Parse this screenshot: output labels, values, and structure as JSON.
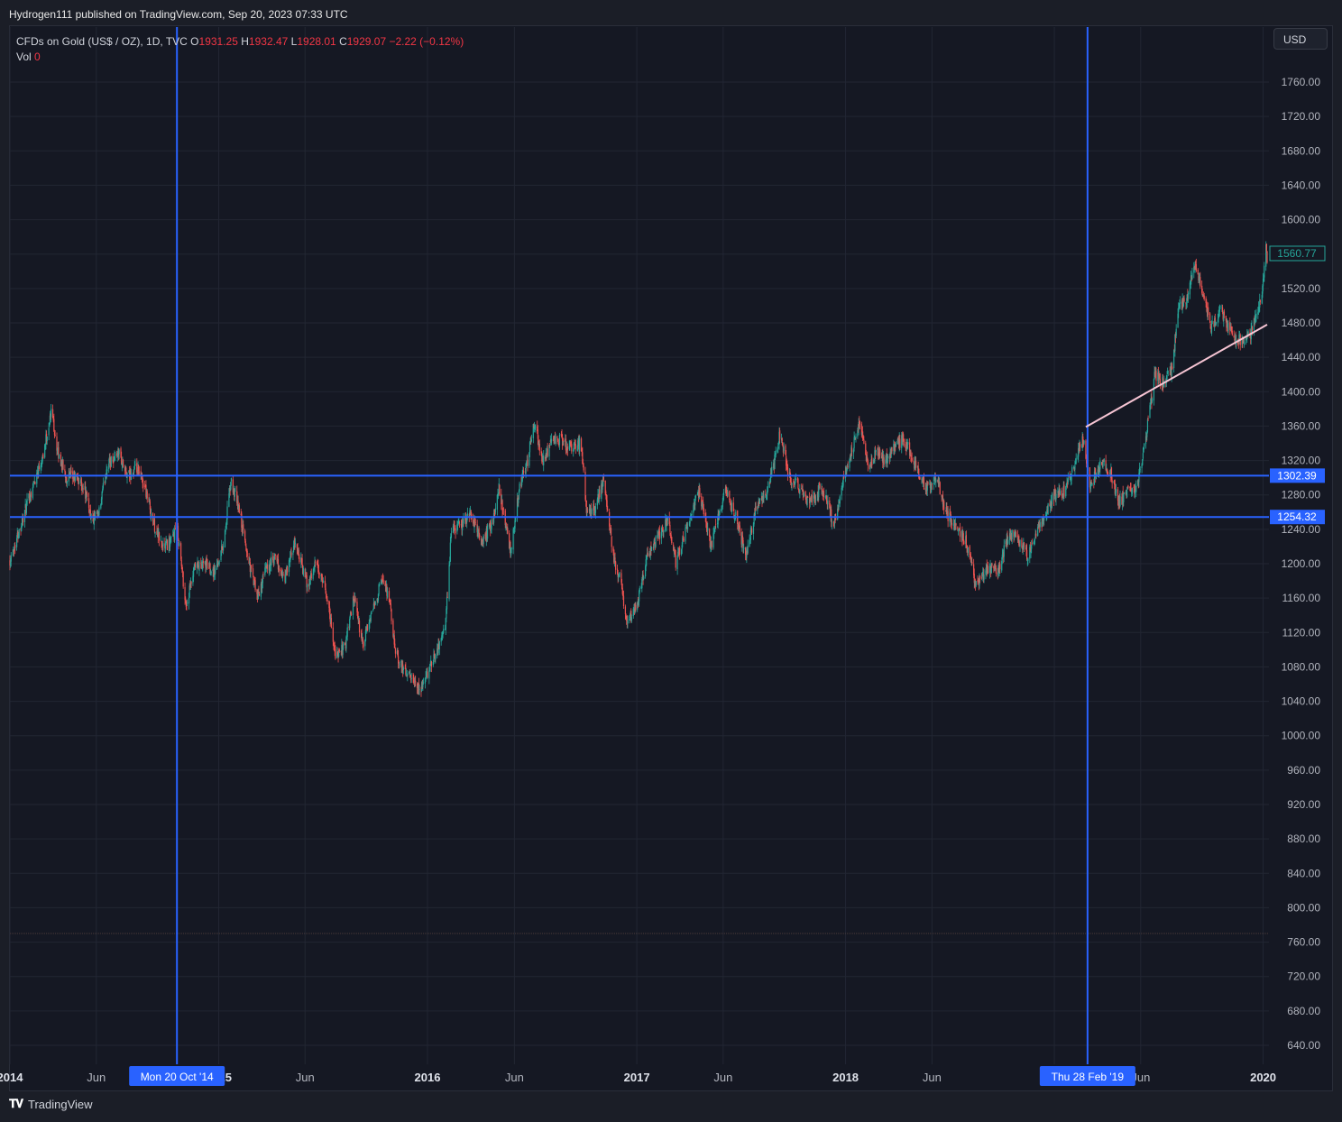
{
  "header": {
    "text": "Hydrogen111 published on TradingView.com, Sep 20, 2023 07:33 UTC"
  },
  "legend": {
    "symbol": "CFDs on Gold (US$ / OZ), 1D, TVC",
    "o_label": "O",
    "o_value": "1931.25",
    "h_label": "H",
    "h_value": "1932.47",
    "l_label": "L",
    "l_value": "1928.01",
    "c_label": "C",
    "c_value": "1929.07",
    "change": "−2.22 (−0.12%)",
    "vol_label": "Vol",
    "vol_value": "0"
  },
  "currency_button": "USD",
  "footer": {
    "logo_icon": "tradingview-logo-icon",
    "brand": "TradingView"
  },
  "colors": {
    "background": "#151823",
    "grid": "#222633",
    "up": "#26a69a",
    "down": "#ef5350",
    "marker": "#2962ff",
    "trendline": "#f7c5d4",
    "text": "#b2b5be"
  },
  "chart_data": {
    "type": "candlestick",
    "title": "CFDs on Gold (US$ / OZ), 1D, TVC",
    "ylim": [
      620,
      1800
    ],
    "y_ticks": [
      640,
      680,
      720,
      760,
      800,
      840,
      880,
      920,
      960,
      1000,
      1040,
      1080,
      1120,
      1160,
      1200,
      1240,
      1280,
      1320,
      1360,
      1400,
      1440,
      1480,
      1520,
      1560,
      1600,
      1640,
      1680,
      1720,
      1760
    ],
    "x_range": [
      "2014-01-01",
      "2020-01-08"
    ],
    "x_ticks": [
      {
        "date": "2014-01-01",
        "label": "2014",
        "bold": true
      },
      {
        "date": "2014-06-01",
        "label": "Jun",
        "bold": false
      },
      {
        "date": "2015-01-01",
        "label": "2015",
        "bold": true
      },
      {
        "date": "2015-06-01",
        "label": "Jun",
        "bold": false
      },
      {
        "date": "2016-01-01",
        "label": "2016",
        "bold": true
      },
      {
        "date": "2016-06-01",
        "label": "Jun",
        "bold": false
      },
      {
        "date": "2017-01-01",
        "label": "2017",
        "bold": true
      },
      {
        "date": "2017-06-01",
        "label": "Jun",
        "bold": false
      },
      {
        "date": "2018-01-01",
        "label": "2018",
        "bold": true
      },
      {
        "date": "2018-06-01",
        "label": "Jun",
        "bold": false
      },
      {
        "date": "2019-01-01",
        "label": "2019",
        "bold": true
      },
      {
        "date": "2019-06-01",
        "label": "Jun",
        "bold": false
      },
      {
        "date": "2020-01-01",
        "label": "2020",
        "bold": true
      }
    ],
    "price_path": [
      [
        "2014-01-01",
        1205
      ],
      [
        "2014-01-20",
        1245
      ],
      [
        "2014-02-10",
        1290
      ],
      [
        "2014-03-01",
        1330
      ],
      [
        "2014-03-15",
        1380
      ],
      [
        "2014-03-25",
        1330
      ],
      [
        "2014-04-10",
        1300
      ],
      [
        "2014-04-25",
        1300
      ],
      [
        "2014-05-10",
        1290
      ],
      [
        "2014-05-25",
        1250
      ],
      [
        "2014-06-05",
        1255
      ],
      [
        "2014-06-20",
        1315
      ],
      [
        "2014-07-10",
        1330
      ],
      [
        "2014-07-25",
        1300
      ],
      [
        "2014-08-10",
        1310
      ],
      [
        "2014-08-25",
        1290
      ],
      [
        "2014-09-10",
        1245
      ],
      [
        "2014-09-25",
        1220
      ],
      [
        "2014-10-10",
        1225
      ],
      [
        "2014-10-20",
        1245
      ],
      [
        "2014-11-05",
        1150
      ],
      [
        "2014-11-20",
        1195
      ],
      [
        "2014-12-10",
        1200
      ],
      [
        "2014-12-25",
        1190
      ],
      [
        "2015-01-10",
        1225
      ],
      [
        "2015-01-22",
        1295
      ],
      [
        "2015-02-05",
        1265
      ],
      [
        "2015-02-20",
        1210
      ],
      [
        "2015-03-10",
        1160
      ],
      [
        "2015-03-25",
        1195
      ],
      [
        "2015-04-10",
        1205
      ],
      [
        "2015-04-25",
        1180
      ],
      [
        "2015-05-15",
        1225
      ],
      [
        "2015-06-05",
        1175
      ],
      [
        "2015-06-20",
        1200
      ],
      [
        "2015-07-10",
        1160
      ],
      [
        "2015-07-25",
        1090
      ],
      [
        "2015-08-10",
        1105
      ],
      [
        "2015-08-25",
        1160
      ],
      [
        "2015-09-10",
        1105
      ],
      [
        "2015-09-25",
        1140
      ],
      [
        "2015-10-12",
        1180
      ],
      [
        "2015-10-25",
        1165
      ],
      [
        "2015-11-05",
        1100
      ],
      [
        "2015-11-20",
        1075
      ],
      [
        "2015-12-05",
        1065
      ],
      [
        "2015-12-18",
        1050
      ],
      [
        "2016-01-05",
        1080
      ],
      [
        "2016-01-20",
        1105
      ],
      [
        "2016-02-01",
        1125
      ],
      [
        "2016-02-12",
        1240
      ],
      [
        "2016-03-01",
        1245
      ],
      [
        "2016-03-15",
        1260
      ],
      [
        "2016-04-05",
        1225
      ],
      [
        "2016-04-25",
        1250
      ],
      [
        "2016-05-05",
        1290
      ],
      [
        "2016-05-25",
        1215
      ],
      [
        "2016-06-10",
        1290
      ],
      [
        "2016-06-24",
        1320
      ],
      [
        "2016-07-06",
        1365
      ],
      [
        "2016-07-20",
        1320
      ],
      [
        "2016-08-05",
        1340
      ],
      [
        "2016-08-20",
        1345
      ],
      [
        "2016-09-05",
        1335
      ],
      [
        "2016-09-25",
        1340
      ],
      [
        "2016-10-05",
        1265
      ],
      [
        "2016-10-20",
        1265
      ],
      [
        "2016-11-05",
        1300
      ],
      [
        "2016-11-20",
        1210
      ],
      [
        "2016-12-05",
        1175
      ],
      [
        "2016-12-15",
        1130
      ],
      [
        "2016-12-31",
        1150
      ],
      [
        "2017-01-20",
        1210
      ],
      [
        "2017-02-10",
        1235
      ],
      [
        "2017-02-25",
        1255
      ],
      [
        "2017-03-10",
        1200
      ],
      [
        "2017-03-31",
        1250
      ],
      [
        "2017-04-20",
        1285
      ],
      [
        "2017-05-10",
        1220
      ],
      [
        "2017-06-05",
        1285
      ],
      [
        "2017-06-25",
        1250
      ],
      [
        "2017-07-10",
        1210
      ],
      [
        "2017-07-31",
        1270
      ],
      [
        "2017-08-20",
        1290
      ],
      [
        "2017-09-08",
        1350
      ],
      [
        "2017-09-25",
        1300
      ],
      [
        "2017-10-10",
        1290
      ],
      [
        "2017-10-30",
        1270
      ],
      [
        "2017-11-20",
        1290
      ],
      [
        "2017-12-12",
        1245
      ],
      [
        "2017-12-31",
        1305
      ],
      [
        "2018-01-25",
        1360
      ],
      [
        "2018-02-10",
        1315
      ],
      [
        "2018-02-25",
        1330
      ],
      [
        "2018-03-10",
        1320
      ],
      [
        "2018-04-10",
        1345
      ],
      [
        "2018-04-20",
        1335
      ],
      [
        "2018-05-05",
        1310
      ],
      [
        "2018-05-20",
        1290
      ],
      [
        "2018-06-10",
        1300
      ],
      [
        "2018-06-25",
        1260
      ],
      [
        "2018-07-10",
        1245
      ],
      [
        "2018-07-31",
        1225
      ],
      [
        "2018-08-16",
        1175
      ],
      [
        "2018-09-05",
        1195
      ],
      [
        "2018-09-25",
        1190
      ],
      [
        "2018-10-10",
        1230
      ],
      [
        "2018-10-25",
        1235
      ],
      [
        "2018-11-15",
        1210
      ],
      [
        "2018-12-05",
        1240
      ],
      [
        "2018-12-31",
        1280
      ],
      [
        "2019-01-20",
        1285
      ],
      [
        "2019-02-05",
        1315
      ],
      [
        "2019-02-20",
        1345
      ],
      [
        "2019-03-05",
        1290
      ],
      [
        "2019-03-25",
        1320
      ],
      [
        "2019-04-10",
        1305
      ],
      [
        "2019-04-23",
        1270
      ],
      [
        "2019-05-10",
        1285
      ],
      [
        "2019-05-25",
        1285
      ],
      [
        "2019-06-05",
        1330
      ],
      [
        "2019-06-20",
        1390
      ],
      [
        "2019-06-25",
        1420
      ],
      [
        "2019-07-10",
        1410
      ],
      [
        "2019-07-25",
        1425
      ],
      [
        "2019-08-07",
        1500
      ],
      [
        "2019-08-20",
        1505
      ],
      [
        "2019-09-04",
        1550
      ],
      [
        "2019-09-20",
        1510
      ],
      [
        "2019-10-01",
        1475
      ],
      [
        "2019-10-20",
        1495
      ],
      [
        "2019-11-10",
        1460
      ],
      [
        "2019-11-25",
        1460
      ],
      [
        "2019-12-10",
        1465
      ],
      [
        "2019-12-24",
        1500
      ],
      [
        "2019-12-31",
        1520
      ],
      [
        "2020-01-06",
        1570
      ],
      [
        "2020-01-08",
        1555
      ]
    ],
    "horizontal_lines": [
      {
        "price": 1302.39,
        "label": "1302.39"
      },
      {
        "price": 1254.32,
        "label": "1254.32"
      }
    ],
    "vertical_lines": [
      {
        "date": "2014-10-20",
        "label": "Mon 20 Oct '14"
      },
      {
        "date": "2019-02-28",
        "label": "Thu 28 Feb '19"
      }
    ],
    "trendline": {
      "from": [
        "2019-02-25",
        1359
      ],
      "to": [
        "2020-01-08",
        1478
      ]
    },
    "last_price": {
      "price": 1560.77,
      "label": "1560.77"
    },
    "volume_baseline": 770
  }
}
